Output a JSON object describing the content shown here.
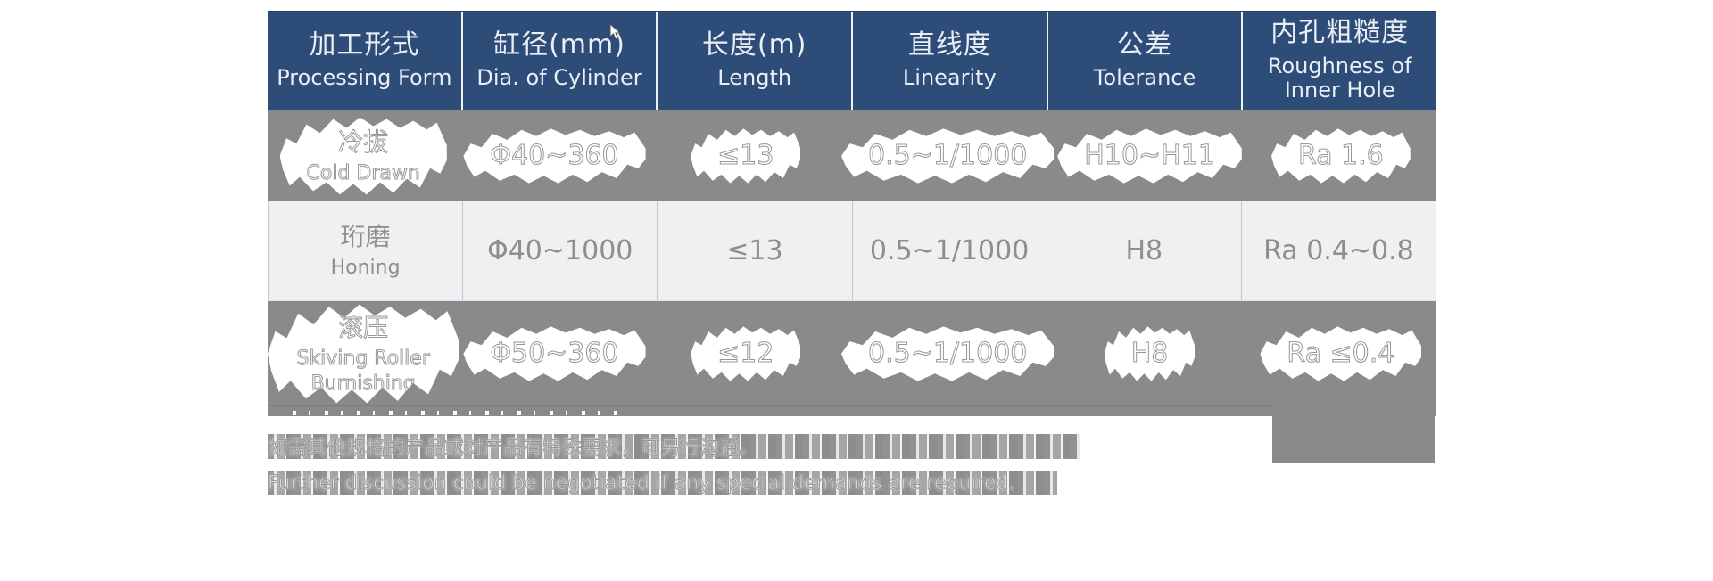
{
  "table": {
    "columns": [
      {
        "zh": "加工形式",
        "en": "Processing Form"
      },
      {
        "zh": "缸径(mm)",
        "en": "Dia. of Cylinder"
      },
      {
        "zh": "长度(m)",
        "en": "Length"
      },
      {
        "zh": "直线度",
        "en": "Linearity"
      },
      {
        "zh": "公差",
        "en": "Tolerance"
      },
      {
        "zh": "内孔粗糙度",
        "en": "Roughness of Inner Hole"
      }
    ],
    "value_keys": [
      "dia",
      "length",
      "linearity",
      "tolerance",
      "roughness"
    ],
    "rows": [
      {
        "style": "masked",
        "form_zh": "冷拔",
        "form_en": "Cold Drawn",
        "dia": "Φ40~360",
        "length": "≤13",
        "linearity": "0.5~1/1000",
        "tolerance": "H10~H11",
        "roughness": "Ra 1.6"
      },
      {
        "style": "plain",
        "form_zh": "珩磨",
        "form_en": "Honing",
        "dia": "Φ40~1000",
        "length": "≤13",
        "linearity": "0.5~1/1000",
        "tolerance": "H8",
        "roughness": "Ra 0.4~0.8"
      },
      {
        "style": "masked",
        "form_zh": "滚压",
        "form_en": "Skiving Roller Burnishing",
        "dia": "Φ50~360",
        "length": "≤12",
        "linearity": "0.5~1/1000",
        "tolerance": "H8",
        "roughness": "Ra ≤0.4"
      }
    ]
  },
  "notes": {
    "zh": "如需其他规格的产品或对产品有特殊要求，可另行沟通。",
    "en": "Further discussion could be negotiated if any special demands are required."
  },
  "colors": {
    "header_bg": "#2d4c77",
    "row_gray": "#8a8a8c",
    "row_light": "#f0f0f2",
    "text_gray": "#8e8e91"
  }
}
